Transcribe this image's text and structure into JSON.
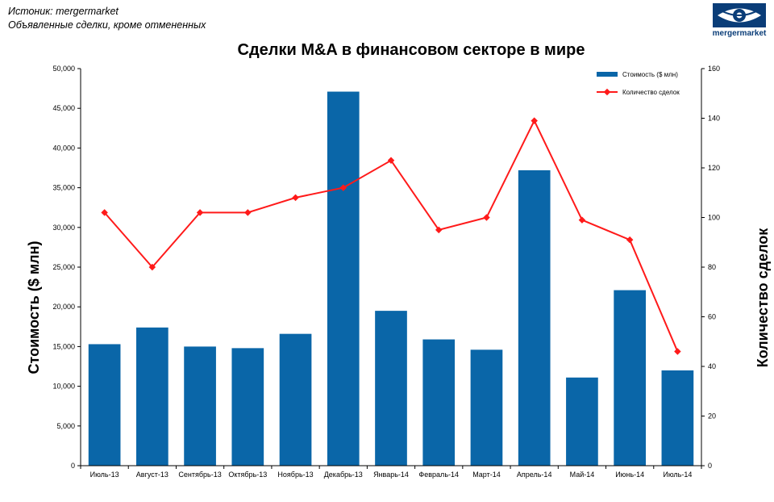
{
  "source": {
    "line1": "Истоник: mergermarket",
    "line2": "Объявленные сделки, кроме отмененных"
  },
  "logo": {
    "text": "mergermarket"
  },
  "colors": {
    "bar": "#0a66a8",
    "line": "#ff1a1a",
    "logo": "#0a3d78"
  },
  "chart_data": {
    "type": "bar",
    "title": "Сделки M&A в финансовом секторе в мире",
    "categories": [
      "Июль-13",
      "Август-13",
      "Сентябрь-13",
      "Октябрь-13",
      "Ноябрь-13",
      "Декабрь-13",
      "Январь-14",
      "Февраль-14",
      "Март-14",
      "Апрель-14",
      "Май-14",
      "Июнь-14",
      "Июль-14"
    ],
    "series": [
      {
        "name": "Стоимость ($ млн)",
        "type": "bar",
        "axis": "left",
        "values": [
          15300,
          17400,
          15000,
          14800,
          16600,
          47100,
          19500,
          15900,
          14600,
          37200,
          11100,
          22100,
          12000
        ]
      },
      {
        "name": "Количество сделок",
        "type": "line",
        "axis": "right",
        "values": [
          102,
          80,
          102,
          102,
          108,
          112,
          123,
          95,
          100,
          139,
          99,
          91,
          46
        ]
      }
    ],
    "ylabel": "Стоимость  ($ млн)",
    "y2label": "Количество сделок",
    "ylim": [
      0,
      50000
    ],
    "y2lim": [
      0,
      160
    ],
    "yticks": [
      "0",
      "5,000",
      "10,000",
      "15,000",
      "20,000",
      "25,000",
      "30,000",
      "35,000",
      "40,000",
      "45,000",
      "50,000"
    ],
    "y2ticks": [
      "0",
      "20",
      "40",
      "60",
      "80",
      "100",
      "120",
      "140",
      "160"
    ],
    "grid": false,
    "legend": "top-right"
  }
}
